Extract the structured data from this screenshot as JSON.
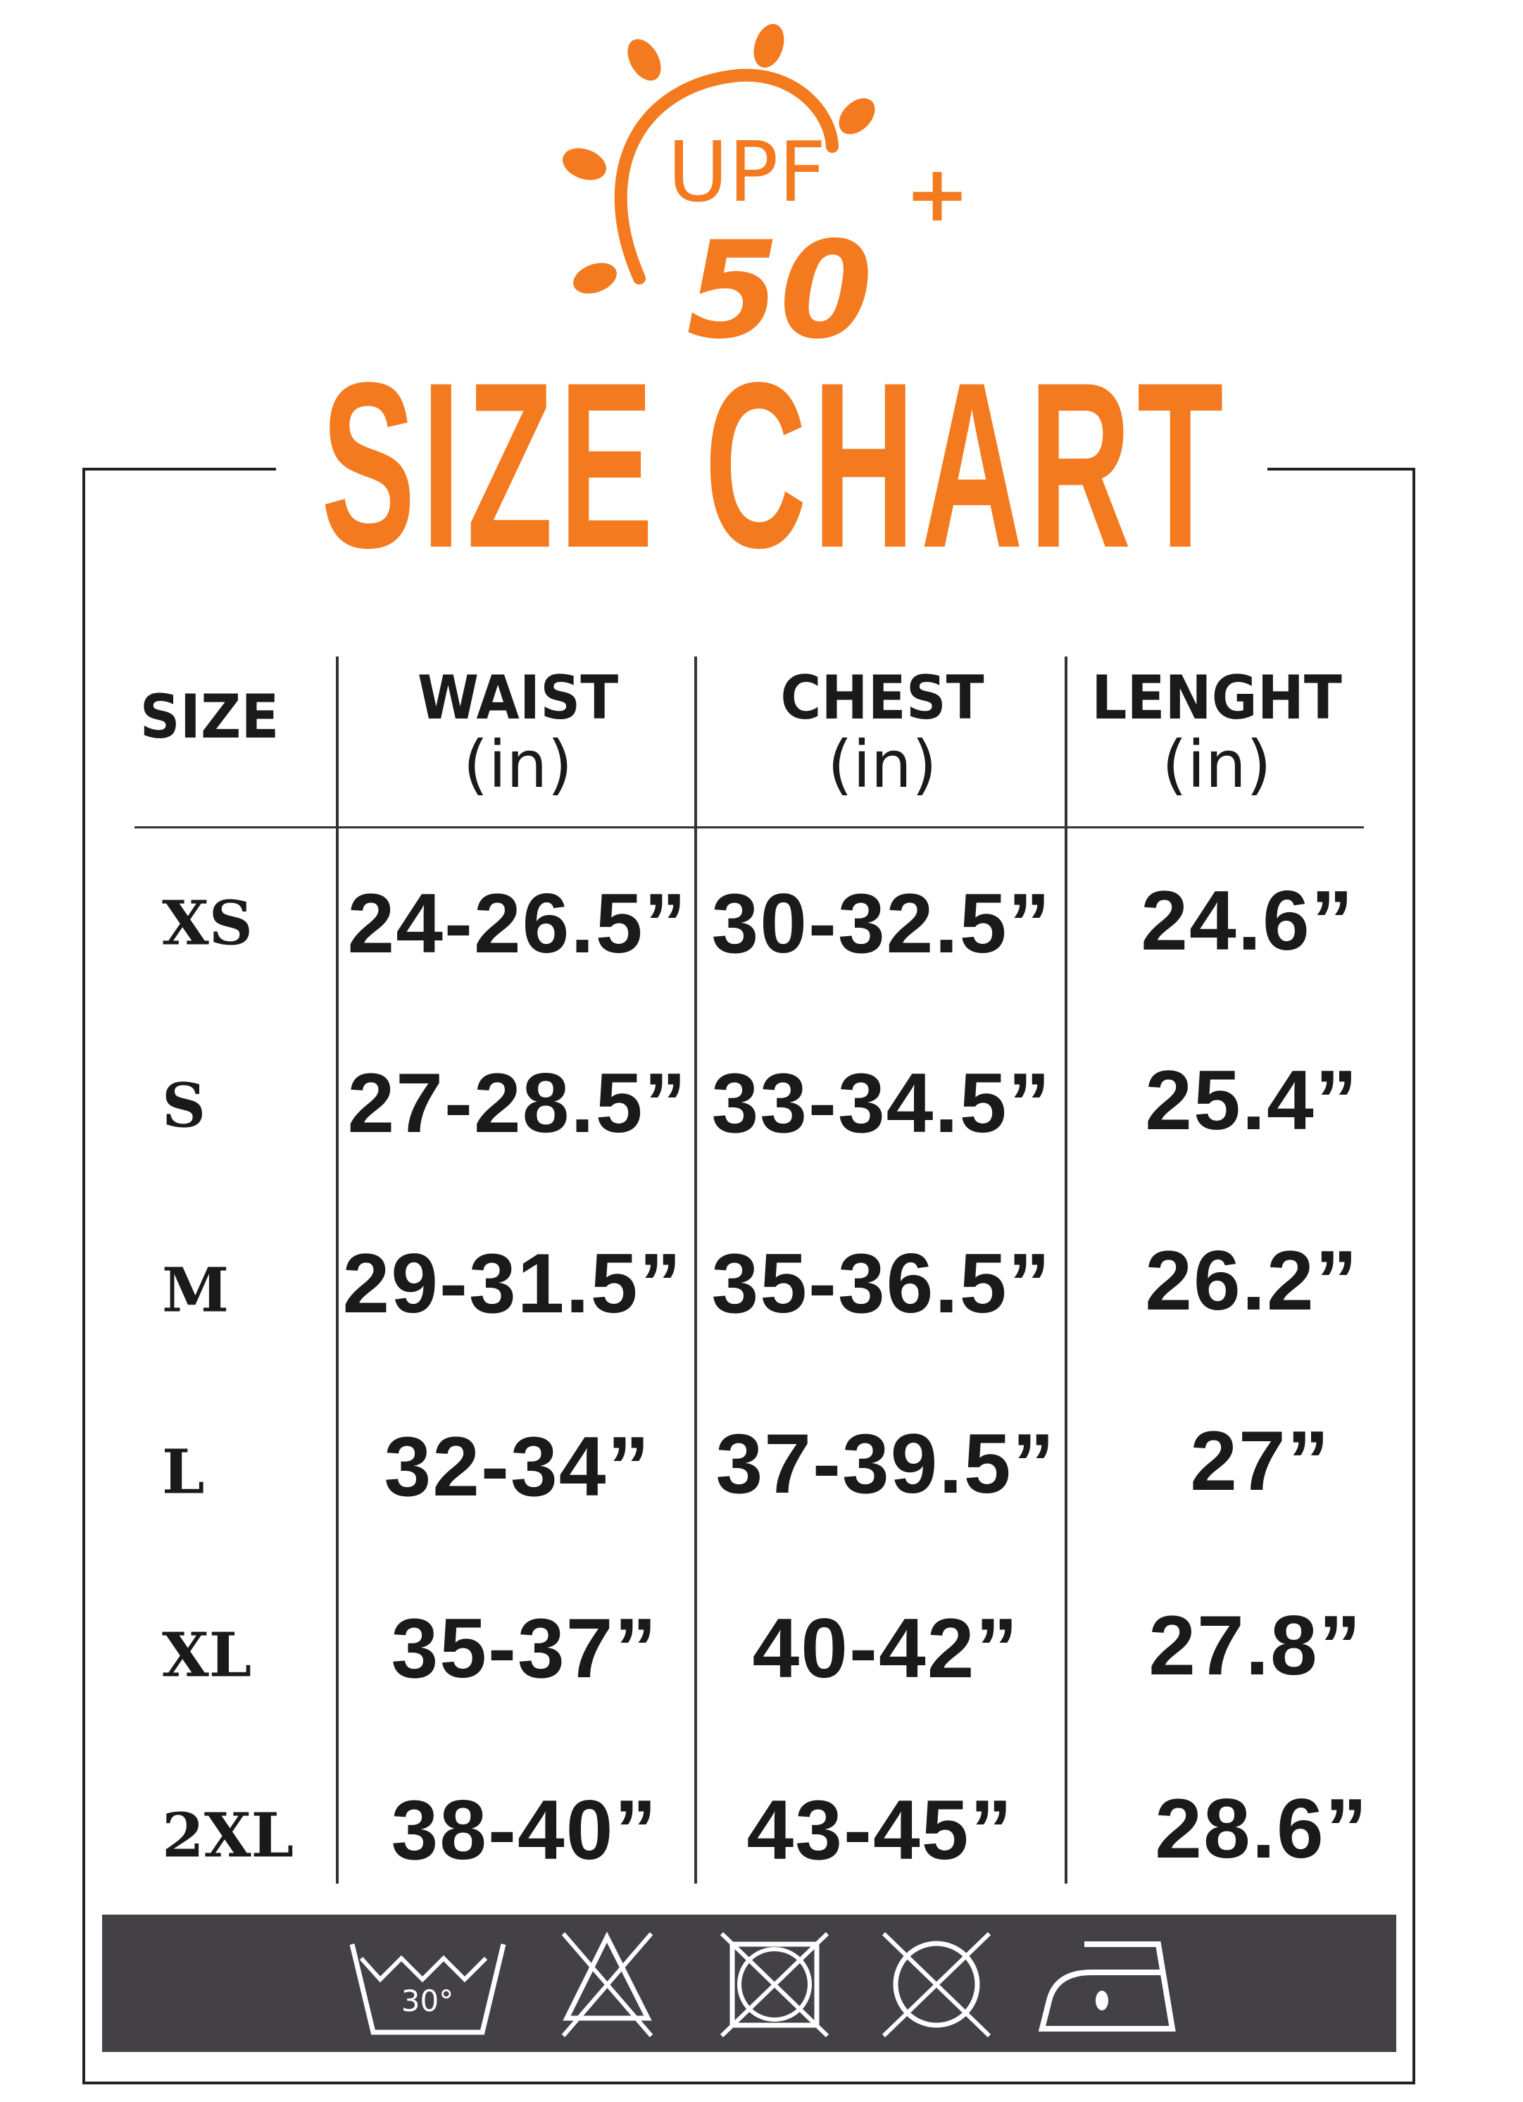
{
  "logo": {
    "line1": "UPF",
    "line2": "50",
    "sup": "+",
    "icon": "sun-icon",
    "color": "#f47a1f"
  },
  "title": "SIZE CHART",
  "table": {
    "headers": [
      {
        "label": "SIZE",
        "unit": ""
      },
      {
        "label": "WAIST",
        "unit": "(in)"
      },
      {
        "label": "CHEST",
        "unit": "(in)"
      },
      {
        "label": "LENGHT",
        "unit": "(in)"
      }
    ],
    "rows": [
      {
        "size": "XS",
        "waist": "24-26.5”",
        "chest": "30-32.5”",
        "length": "24.6”"
      },
      {
        "size": "S",
        "waist": "27-28.5”",
        "chest": "33-34.5”",
        "length": "25.4”"
      },
      {
        "size": "M",
        "waist": "29-31.5”",
        "chest": "35-36.5”",
        "length": "26.2”"
      },
      {
        "size": "L",
        "waist": "32-34”",
        "chest": "37-39.5”",
        "length": "27”"
      },
      {
        "size": "XL",
        "waist": "35-37”",
        "chest": "40-42”",
        "length": "27.8”"
      },
      {
        "size": "2XL",
        "waist": "38-40”",
        "chest": "43-45”",
        "length": "28.6”"
      }
    ]
  },
  "care": {
    "background": "#434146",
    "icons": [
      "wash-30-icon",
      "do-not-bleach-icon",
      "do-not-tumble-dry-icon",
      "do-not-dry-clean-icon",
      "iron-low-icon"
    ],
    "wash_temp": "30°"
  }
}
